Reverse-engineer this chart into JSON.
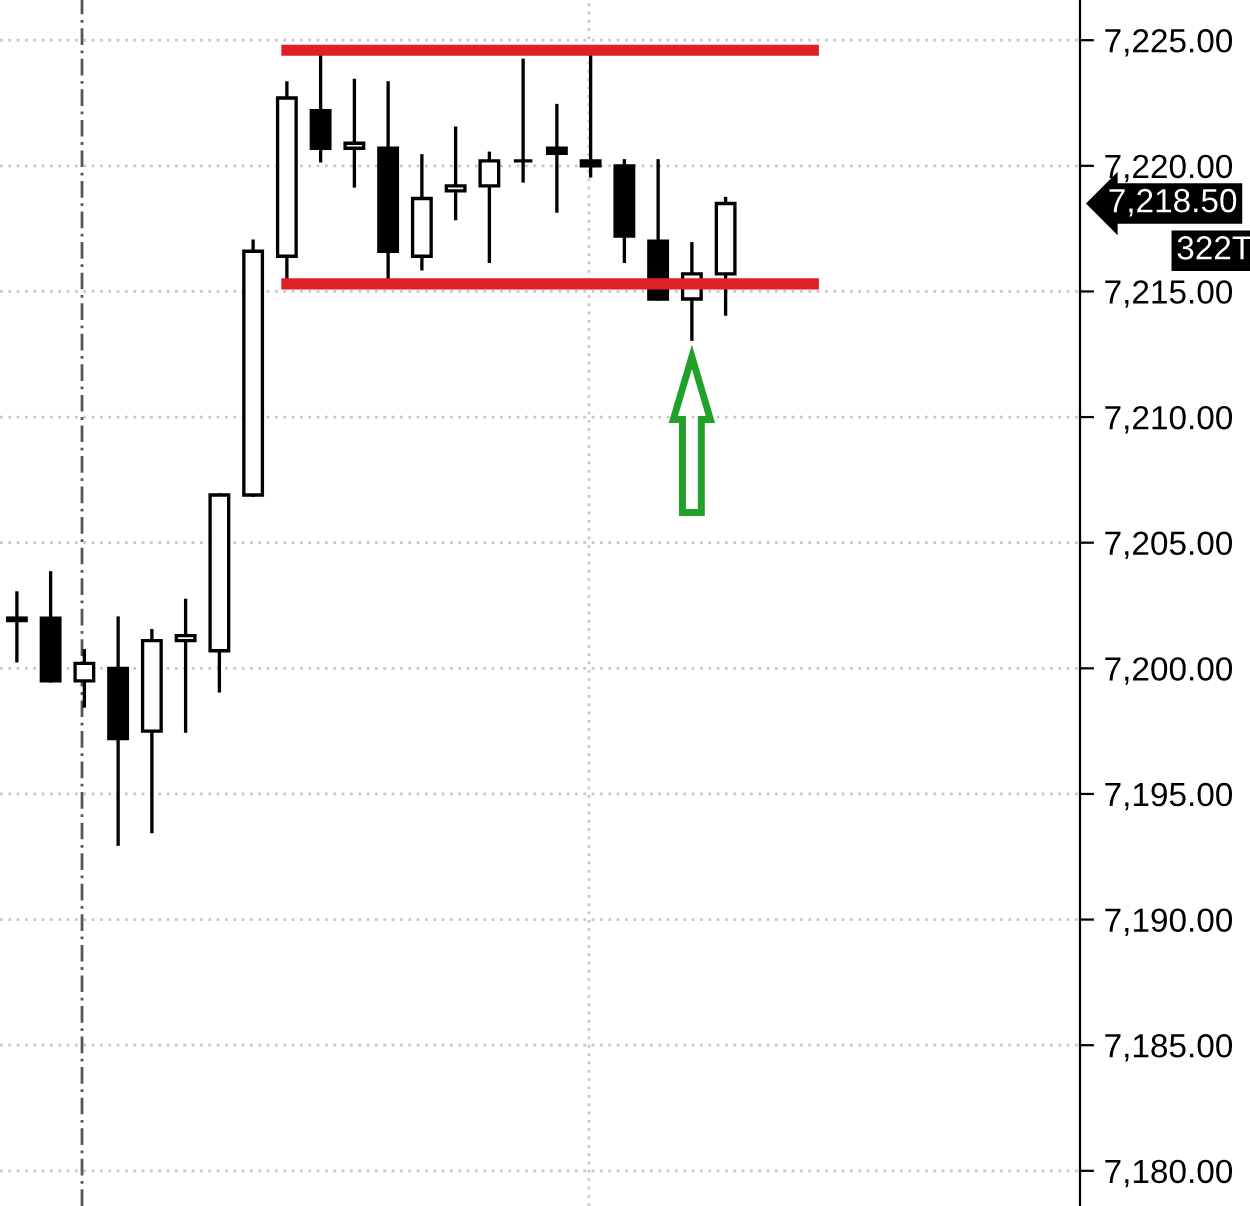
{
  "chart_data": {
    "type": "candlestick",
    "categories": [
      null,
      null,
      null,
      null,
      null,
      null,
      null,
      null,
      null,
      null,
      null,
      null,
      null,
      null,
      null,
      null,
      null,
      null,
      null,
      null,
      null,
      null,
      null,
      null,
      null,
      null,
      null,
      null,
      null,
      null,
      null,
      null
    ],
    "ohlc": [
      [
        7202.0,
        7203.0,
        7200.3,
        7201.9
      ],
      [
        7202.0,
        7203.8,
        7199.5,
        7199.5
      ],
      [
        7199.5,
        7200.7,
        7198.5,
        7200.2
      ],
      [
        7200.0,
        7202.0,
        7193.0,
        7197.2
      ],
      [
        7197.5,
        7201.5,
        7193.5,
        7201.1
      ],
      [
        7201.1,
        7202.7,
        7197.5,
        7201.3
      ],
      [
        7200.7,
        7206.9,
        7199.1,
        7206.9
      ],
      [
        7206.9,
        7217.0,
        7206.9,
        7216.6
      ],
      [
        7216.4,
        7223.3,
        7215.5,
        7222.7
      ],
      [
        7222.2,
        7224.4,
        7220.2,
        7220.7
      ],
      [
        7220.7,
        7223.4,
        7219.2,
        7220.9
      ],
      [
        7220.7,
        7223.3,
        7215.5,
        7216.6
      ],
      [
        7216.4,
        7220.4,
        7215.9,
        7218.7
      ],
      [
        7219.0,
        7221.5,
        7217.9,
        7219.2
      ],
      [
        7219.2,
        7220.5,
        7216.2,
        7220.2
      ],
      [
        7220.2,
        7224.2,
        7219.4,
        7220.2
      ],
      [
        7220.7,
        7222.4,
        7218.2,
        7220.5
      ],
      [
        7220.2,
        7224.5,
        7219.6,
        7220.0
      ],
      [
        7220.0,
        7220.2,
        7216.2,
        7217.2
      ],
      [
        7217.0,
        7220.2,
        7214.7,
        7214.7
      ],
      [
        7214.7,
        7216.9,
        7213.1,
        7215.7
      ],
      [
        7215.7,
        7218.7,
        7214.1,
        7218.5
      ],
      null,
      null,
      null,
      null,
      null,
      null,
      null,
      null,
      null,
      null
    ],
    "ylim": [
      7178.6,
      7226.6
    ],
    "yticks": [
      {
        "value": 7180,
        "label": "7,180.00"
      },
      {
        "value": 7185,
        "label": "7,185.00"
      },
      {
        "value": 7190,
        "label": "7,190.00"
      },
      {
        "value": 7195,
        "label": "7,195.00"
      },
      {
        "value": 7200,
        "label": "7,200.00"
      },
      {
        "value": 7205,
        "label": "7,205.00"
      },
      {
        "value": 7210,
        "label": "7,210.00"
      },
      {
        "value": 7215,
        "label": "7,215.00"
      },
      {
        "value": 7220,
        "label": "7,220.00"
      },
      {
        "value": 7225,
        "label": "7,225.00"
      }
    ],
    "ref_lines": [
      {
        "axis": "y",
        "value": 7224.6,
        "color": "#e01f26"
      },
      {
        "axis": "y",
        "value": 7215.3,
        "color": "#e01f26"
      }
    ],
    "annotations": [
      "7,218.50",
      "322T"
    ],
    "grid": "y",
    "tick_labels": "y"
  }
}
